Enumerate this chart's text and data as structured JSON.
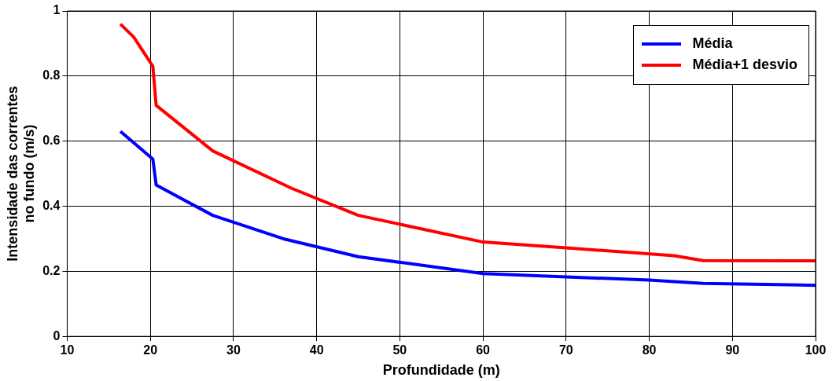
{
  "chart_data": {
    "type": "line",
    "xlabel": "Profundidade (m)",
    "ylabel": "Intensidade das correntes\nno fundo (m/s)",
    "xlim": [
      10,
      100
    ],
    "xticks": [
      10,
      20,
      30,
      40,
      50,
      60,
      70,
      80,
      90,
      100
    ],
    "ylim": [
      0,
      1
    ],
    "yticks": [
      0,
      0.2,
      0.4,
      0.6,
      0.8,
      1
    ],
    "grid": true,
    "legend": "top right",
    "line_style": "solid",
    "marker": "none",
    "series": [
      {
        "name": "Média",
        "color": "#0000ff",
        "x": [
          16.4,
          20.3,
          20.7,
          27.5,
          36,
          45,
          60,
          70,
          80,
          86.5,
          100
        ],
        "values": [
          0.63,
          0.545,
          0.465,
          0.372,
          0.3,
          0.245,
          0.193,
          0.183,
          0.173,
          0.163,
          0.157
        ]
      },
      {
        "name": "Média+1 desvio",
        "color": "#ff0000",
        "x": [
          16.4,
          18,
          20.3,
          20.7,
          27.5,
          37,
          45,
          60,
          70,
          83,
          86.5,
          100
        ],
        "values": [
          0.96,
          0.92,
          0.83,
          0.71,
          0.57,
          0.455,
          0.372,
          0.29,
          0.272,
          0.248,
          0.233,
          0.232
        ]
      }
    ]
  }
}
